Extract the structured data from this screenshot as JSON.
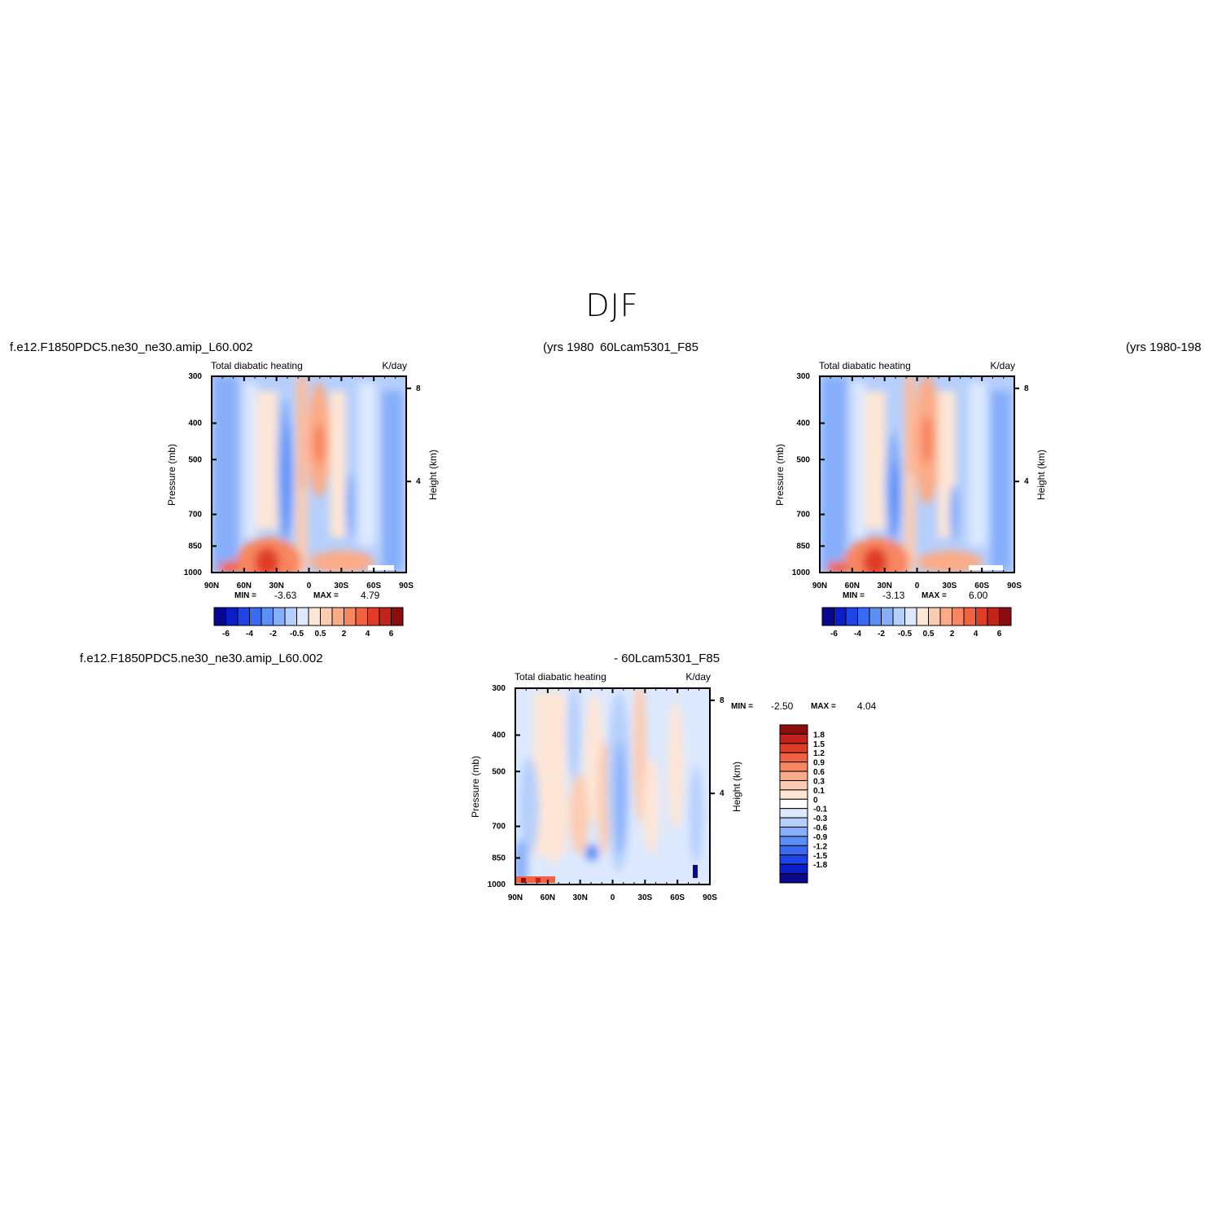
{
  "title": "DJF",
  "colors": {
    "blue_scale": [
      "#08088e",
      "#0b1ec8",
      "#1e44e8",
      "#3a6af2",
      "#5b8ef6",
      "#86aefa",
      "#b5cffc",
      "#dce9fe"
    ],
    "red_scale": [
      "#fde6d6",
      "#fcccb2",
      "#fbab87",
      "#f88660",
      "#f26240",
      "#e03d26",
      "#c2231a",
      "#8c0d0d"
    ]
  },
  "panels": [
    {
      "id": "top-left",
      "case_label": "f.e12.F1850PDC5.ne30_ne30.amip_L60.002",
      "years_label": "(yrs 1980",
      "variable": "Total diabatic heating",
      "units": "K/day",
      "ylabel": "Pressure (mb)",
      "ylabel_right": "Height (km)",
      "stats_min_label": "MIN =",
      "stats_min": "-3.63",
      "stats_max_label": "MAX =",
      "stats_max": "4.79"
    },
    {
      "id": "top-right",
      "case_label": "60Lcam5301_F85",
      "years_label": "(yrs 1980-198",
      "variable": "Total diabatic heating",
      "units": "K/day",
      "ylabel": "Pressure (mb)",
      "ylabel_right": "Height (km)",
      "stats_min_label": "MIN =",
      "stats_min": "-3.13",
      "stats_max_label": "MAX =",
      "stats_max": "6.00"
    },
    {
      "id": "bottom",
      "case_label": "f.e12.F1850PDC5.ne30_ne30.amip_L60.002",
      "case_label_2": "- 60Lcam5301_F85",
      "variable": "Total diabatic heating",
      "units": "K/day",
      "ylabel": "Pressure (mb)",
      "ylabel_right": "Height (km)",
      "stats_min_label": "MIN =",
      "stats_min": "-2.50",
      "stats_max_label": "MAX =",
      "stats_max": "4.04"
    }
  ],
  "chart_data": [
    {
      "type": "heatmap",
      "panel": "top-left",
      "title": "Total diabatic heating",
      "units": "K/day",
      "xlabel": "",
      "ylabel": "Pressure (mb)",
      "x_ticks": [
        "90N",
        "60N",
        "30N",
        "0",
        "30S",
        "60S",
        "90S"
      ],
      "y_ticks": [
        300,
        400,
        500,
        700,
        850,
        1000
      ],
      "y2_ticks": [
        4,
        8
      ],
      "y2label": "Height (km)",
      "xlim": [
        90,
        -90
      ],
      "ylim": [
        1000,
        300
      ],
      "min": -3.63,
      "max": 4.79,
      "colorbar_labels": [
        "-6",
        "-4",
        "-2",
        "-0.5",
        "0.5",
        "2",
        "4",
        "6"
      ],
      "features": [
        {
          "lat": 78,
          "value": -1.2,
          "note": "high-latitude cooling"
        },
        {
          "lat": 20,
          "value": -2.5,
          "note": "subtropical NH cooling"
        },
        {
          "lat": -3,
          "value": 2.5,
          "note": "ITCZ heating"
        },
        {
          "lat": 40,
          "value": 4.0,
          "note": "NH surface heating"
        },
        {
          "lat": -35,
          "value": -1.5,
          "note": "SH subtropical cooling"
        },
        {
          "lat": -42,
          "value": 2.0,
          "note": "SH surface heating"
        }
      ]
    },
    {
      "type": "heatmap",
      "panel": "top-right",
      "title": "Total diabatic heating",
      "units": "K/day",
      "xlabel": "",
      "ylabel": "Pressure (mb)",
      "x_ticks": [
        "90N",
        "60N",
        "30N",
        "0",
        "30S",
        "60S",
        "90S"
      ],
      "y_ticks": [
        300,
        400,
        500,
        700,
        850,
        1000
      ],
      "y2_ticks": [
        4,
        8
      ],
      "y2label": "Height (km)",
      "xlim": [
        90,
        -90
      ],
      "ylim": [
        1000,
        300
      ],
      "min": -3.13,
      "max": 6.0,
      "colorbar_labels": [
        "-6",
        "-4",
        "-2",
        "-0.5",
        "0.5",
        "2",
        "4",
        "6"
      ],
      "features": [
        {
          "lat": 78,
          "value": -1.2,
          "note": "high-latitude cooling"
        },
        {
          "lat": 20,
          "value": -2.5,
          "note": "subtropical NH cooling"
        },
        {
          "lat": -3,
          "value": 2.5,
          "note": "ITCZ heating"
        },
        {
          "lat": 40,
          "value": 4.5,
          "note": "NH surface heating"
        },
        {
          "lat": -35,
          "value": -1.5,
          "note": "SH subtropical cooling"
        },
        {
          "lat": -42,
          "value": 2.0,
          "note": "SH surface heating"
        }
      ]
    },
    {
      "type": "heatmap",
      "panel": "bottom",
      "title": "Total diabatic heating",
      "units": "K/day",
      "xlabel": "",
      "ylabel": "Pressure (mb)",
      "x_ticks": [
        "90N",
        "60N",
        "30N",
        "0",
        "30S",
        "60S",
        "90S"
      ],
      "y_ticks": [
        300,
        400,
        500,
        700,
        850,
        1000
      ],
      "y2_ticks": [
        4,
        8
      ],
      "y2label": "Height (km)",
      "xlim": [
        90,
        -90
      ],
      "ylim": [
        1000,
        300
      ],
      "min": -2.5,
      "max": 4.04,
      "colorbar_labels": [
        "1.8",
        "1.5",
        "1.2",
        "0.9",
        "0.6",
        "0.3",
        "0.1",
        "0",
        "-0.1",
        "-0.3",
        "-0.6",
        "-0.9",
        "-1.2",
        "-1.5",
        "-1.8"
      ],
      "features": [
        {
          "lat": 30,
          "value": 0.3,
          "note": "NH midtroposphere weak positive"
        },
        {
          "lat": 5,
          "value": -0.6,
          "note": "equatorial negative"
        },
        {
          "lat": -25,
          "value": 0.3,
          "note": "SH positive band"
        },
        {
          "lat": 75,
          "value": 1.5,
          "note": "near-surface high-latitude positive"
        }
      ]
    }
  ]
}
